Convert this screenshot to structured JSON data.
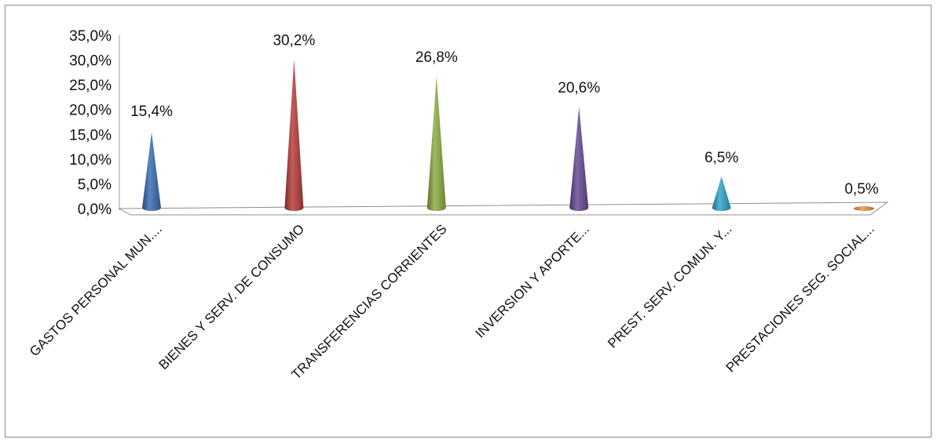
{
  "chart_data": {
    "type": "bar",
    "title": "",
    "xlabel": "",
    "ylabel": "",
    "ylim": [
      0,
      35
    ],
    "y_ticks": [
      "0,0%",
      "5,0%",
      "10,0%",
      "15,0%",
      "20,0%",
      "25,0%",
      "30,0%",
      "35,0%"
    ],
    "categories": [
      "GASTOS PERSONAL MUN....",
      "BIENES Y SERV. DE CONSUMO",
      "TRANSFERENCIAS CORRIENTES",
      "INVERSION Y APORTE...",
      "PREST. SERV. COMUN. Y...",
      "PRESTACIONES SEG. SOCIAL..."
    ],
    "values": [
      15.4,
      30.2,
      26.8,
      20.6,
      6.5,
      0.5
    ],
    "value_labels": [
      "15,4%",
      "30,2%",
      "26,8%",
      "20,6%",
      "6,5%",
      "0,5%"
    ],
    "colors": [
      "#3d6fb5",
      "#b9403d",
      "#8fae45",
      "#6a4c98",
      "#33a7c8",
      "#e69a44"
    ],
    "grid": false,
    "legend": "none",
    "style": "3d-cone"
  }
}
